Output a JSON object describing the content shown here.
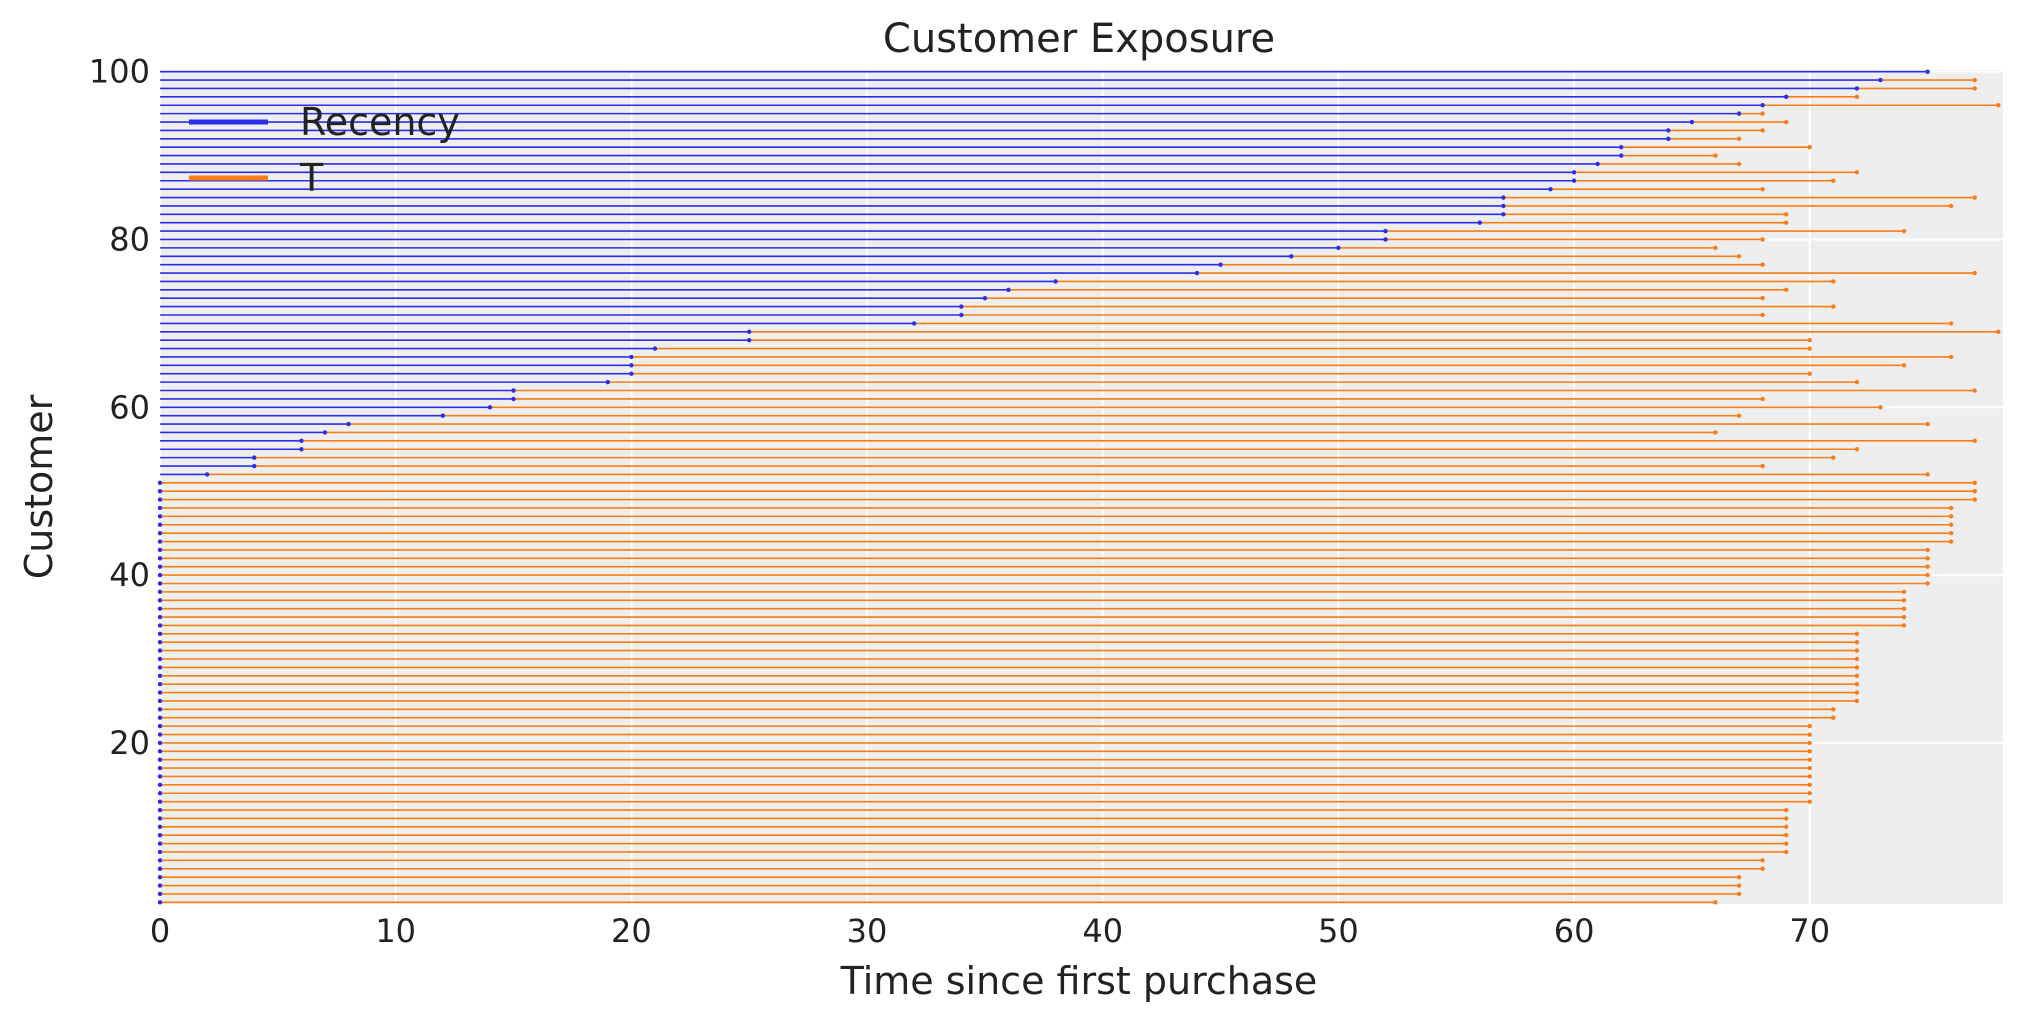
{
  "chart_data": {
    "type": "line",
    "title": "Customer Exposure",
    "xlabel": "Time since first purchase",
    "ylabel": "Customer",
    "xlim": [
      0,
      78.2
    ],
    "ylim": [
      0.8,
      100.2
    ],
    "xticks": [
      0,
      10,
      20,
      30,
      40,
      50,
      60,
      70
    ],
    "yticks": [
      20,
      40,
      60,
      80,
      100
    ],
    "grid": true,
    "legend_position": "top-left",
    "colors": {
      "recency": "#2a2eec",
      "T": "#fa7c17",
      "plot_background": "#eeeeee",
      "grid": "#ffffff"
    },
    "series": [
      {
        "name": "Recency",
        "values": [
          0,
          0,
          0,
          0,
          0,
          0,
          0,
          0,
          0,
          0,
          0,
          0,
          0,
          0,
          0,
          0,
          0,
          0,
          0,
          0,
          0,
          0,
          0,
          0,
          0,
          0,
          0,
          0,
          0,
          0,
          0,
          0,
          0,
          0,
          0,
          0,
          0,
          0,
          0,
          0,
          0,
          0,
          0,
          0,
          0,
          0,
          0,
          0,
          0,
          0,
          0,
          2,
          4,
          4,
          6,
          6,
          7,
          8,
          12,
          14,
          15,
          15,
          19,
          20,
          20,
          20,
          21,
          25,
          25,
          32,
          34,
          34,
          35,
          36,
          38,
          44,
          45,
          48,
          50,
          52,
          52,
          56,
          57,
          57,
          57,
          59,
          60,
          60,
          61,
          62,
          62,
          64,
          64,
          65,
          67,
          68,
          69,
          72,
          73,
          75
        ]
      },
      {
        "name": "T",
        "values": [
          66,
          67,
          67,
          67,
          68,
          68,
          69,
          69,
          69,
          69,
          69,
          69,
          70,
          70,
          70,
          70,
          70,
          70,
          70,
          70,
          70,
          70,
          71,
          71,
          72,
          72,
          72,
          72,
          72,
          72,
          72,
          72,
          72,
          74,
          74,
          74,
          74,
          74,
          75,
          75,
          75,
          75,
          75,
          76,
          76,
          76,
          76,
          76,
          77,
          77,
          77,
          75,
          68,
          71,
          72,
          77,
          66,
          75,
          67,
          73,
          68,
          77,
          72,
          70,
          74,
          76,
          70,
          70,
          78,
          76,
          68,
          71,
          68,
          69,
          71,
          77,
          68,
          67,
          66,
          68,
          74,
          69,
          69,
          76,
          77,
          68,
          71,
          72,
          67,
          66,
          70,
          67,
          68,
          69,
          68,
          78,
          72,
          77,
          77,
          75
        ]
      }
    ]
  }
}
